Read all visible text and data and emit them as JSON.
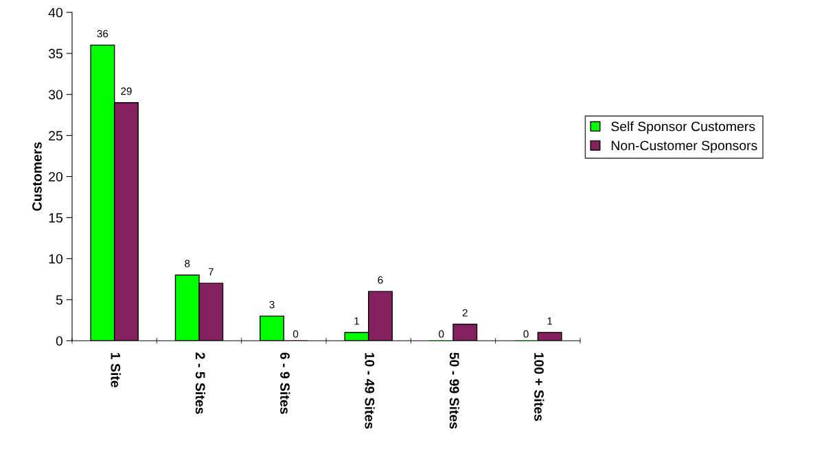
{
  "chart_data": {
    "type": "bar",
    "ylabel": "Customers",
    "categories": [
      "1 Site",
      "2 - 5 Sites",
      "6 - 9 Sites",
      "10 - 49 Sites",
      "50 - 99 Sites",
      "100 + Sites"
    ],
    "series": [
      {
        "name": "Self Sponsor Customers",
        "color": "#00ff00",
        "values": [
          36,
          8,
          3,
          1,
          0,
          0
        ]
      },
      {
        "name": "Non-Customer Sponsors",
        "color": "#86215f",
        "values": [
          29,
          7,
          0,
          6,
          2,
          1
        ]
      }
    ],
    "ylim": [
      0,
      40
    ],
    "yticks": [
      0,
      5,
      10,
      15,
      20,
      25,
      30,
      35,
      40
    ],
    "data_labels": true,
    "legend": "right",
    "grid": false
  }
}
